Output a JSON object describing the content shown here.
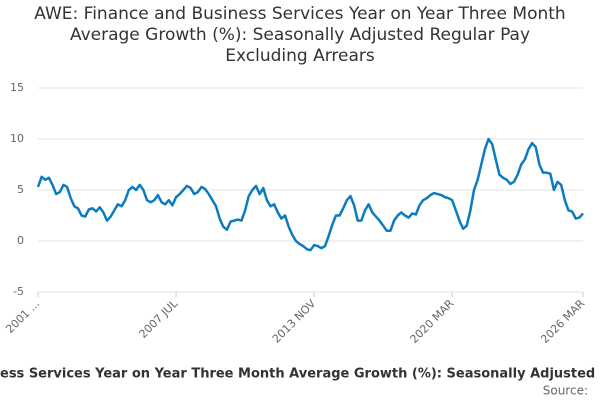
{
  "chart_data": {
    "type": "line",
    "title": "AWE: Finance and Business Services Year on Year Three Month Average Growth (%): Seasonally Adjusted Regular Pay Excluding Arrears",
    "x_label": "ess Services Year on Year Three Month Average Growth (%): Seasonally Adjusted Reg",
    "source": "Source:",
    "categories": [
      "2001 ...",
      null,
      null,
      null,
      null,
      null,
      null,
      null,
      null,
      null,
      null,
      null,
      null,
      null,
      null,
      null,
      null,
      null,
      null,
      null,
      null,
      null,
      null,
      null,
      null,
      null,
      null,
      null,
      null,
      null,
      null,
      null,
      null,
      null,
      null,
      null,
      null,
      null,
      "2007 JUL",
      null,
      null,
      null,
      null,
      null,
      null,
      null,
      null,
      null,
      null,
      null,
      null,
      null,
      null,
      null,
      null,
      null,
      null,
      null,
      null,
      null,
      null,
      null,
      null,
      null,
      null,
      null,
      null,
      null,
      null,
      null,
      null,
      null,
      null,
      null,
      null,
      null,
      "2013 NOV",
      null,
      null,
      null,
      null,
      null,
      null,
      null,
      null,
      null,
      null,
      null,
      null,
      null,
      null,
      null,
      null,
      null,
      null,
      null,
      null,
      null,
      null,
      null,
      null,
      null,
      null,
      null,
      null,
      null,
      null,
      null,
      null,
      null,
      null,
      null,
      null,
      null,
      "2020 MAR",
      null,
      null,
      null,
      null,
      null,
      null,
      null,
      null,
      null,
      null,
      null,
      null,
      null,
      null,
      null,
      null,
      null,
      null,
      null,
      null,
      null,
      null,
      null,
      null,
      null,
      null,
      null,
      null,
      null,
      null,
      null,
      null,
      null,
      null,
      null,
      "2026 MAR"
    ],
    "values": [
      5.3,
      6.3,
      6.0,
      6.2,
      5.5,
      4.6,
      4.8,
      5.5,
      5.3,
      4.2,
      3.4,
      3.2,
      2.5,
      2.4,
      3.1,
      3.2,
      2.9,
      3.3,
      2.8,
      2.0,
      2.4,
      3.0,
      3.6,
      3.4,
      4.0,
      5.0,
      5.3,
      5.0,
      5.5,
      5.0,
      4.0,
      3.8,
      4.0,
      4.5,
      3.8,
      3.6,
      4.0,
      3.5,
      4.3,
      4.6,
      5.0,
      5.4,
      5.2,
      4.6,
      4.8,
      5.3,
      5.1,
      4.6,
      4.0,
      3.4,
      2.2,
      1.4,
      1.1,
      1.9,
      2.0,
      2.1,
      2.0,
      3.0,
      4.4,
      5.0,
      5.4,
      4.6,
      5.2,
      4.0,
      3.4,
      3.6,
      2.8,
      2.2,
      2.5,
      1.4,
      0.6,
      0.0,
      -0.3,
      -0.5,
      -0.8,
      -0.9,
      -0.4,
      -0.5,
      -0.7,
      -0.5,
      0.5,
      1.6,
      2.5,
      2.5,
      3.2,
      4.0,
      4.4,
      3.5,
      2.0,
      2.0,
      3.0,
      3.6,
      2.8,
      2.4,
      2.0,
      1.5,
      1.0,
      1.0,
      2.0,
      2.5,
      2.8,
      2.5,
      2.3,
      2.7,
      2.6,
      3.5,
      4.0,
      4.2,
      4.5,
      4.7,
      4.6,
      4.5,
      4.3,
      4.2,
      4.0,
      3.0,
      2.0,
      1.2,
      1.5,
      3.0,
      5.0,
      6.0,
      7.5,
      9.0,
      10.0,
      9.5,
      8.0,
      6.5,
      6.2,
      6.0,
      5.6,
      5.8,
      6.5,
      7.5,
      8.0,
      9.0,
      9.6,
      9.2,
      7.5,
      6.7,
      6.7,
      6.6,
      5.0,
      5.8,
      5.5,
      4.0,
      3.0,
      2.9,
      2.2,
      2.3,
      2.7
    ],
    "color": "#0c7cbf",
    "ylim": [
      -5,
      15
    ],
    "yticks": [
      -5,
      0,
      5,
      10,
      15
    ],
    "grid": true
  }
}
